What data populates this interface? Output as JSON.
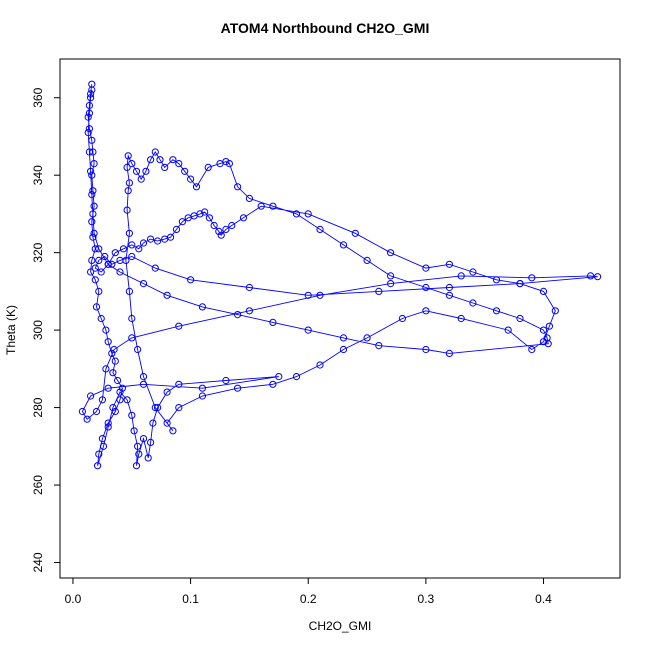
{
  "chart_data": {
    "type": "line",
    "title": "ATOM4 Northbound CH2O_GMI",
    "xlabel": "CH2O_GMI",
    "ylabel": "Theta (K)",
    "xlim": [
      -0.011,
      0.465
    ],
    "ylim": [
      236,
      370
    ],
    "xticks": [
      "0.0",
      "0.1",
      "0.2",
      "0.3",
      "0.4"
    ],
    "yticks": [
      "240",
      "260",
      "280",
      "300",
      "320",
      "340",
      "360"
    ],
    "grid": false,
    "marker": "open-circle",
    "series_color": "#0000ff",
    "series": [
      {
        "points": [
          [
            0.016,
            363.5
          ],
          [
            0.015,
            361.0
          ],
          [
            0.014,
            358.0
          ],
          [
            0.013,
            355.0
          ],
          [
            0.014,
            352.0
          ],
          [
            0.016,
            349.0
          ],
          [
            0.017,
            346.0
          ],
          [
            0.018,
            343.0
          ],
          [
            0.016,
            340.0
          ],
          [
            0.017,
            336.0
          ],
          [
            0.018,
            332.0
          ],
          [
            0.016,
            328.0
          ],
          [
            0.017,
            324.0
          ],
          [
            0.019,
            321.0
          ],
          [
            0.016,
            318.0
          ],
          [
            0.015,
            315.0
          ],
          [
            0.019,
            313.0
          ],
          [
            0.022,
            310.0
          ],
          [
            0.02,
            306.0
          ],
          [
            0.024,
            303.0
          ],
          [
            0.028,
            300.0
          ],
          [
            0.03,
            297.0
          ],
          [
            0.033,
            294.0
          ],
          [
            0.036,
            292.0
          ],
          [
            0.034,
            289.0
          ],
          [
            0.038,
            287.0
          ],
          [
            0.042,
            285.0
          ],
          [
            0.04,
            282.0
          ],
          [
            0.036,
            279.0
          ],
          [
            0.03,
            276.0
          ],
          [
            0.025,
            272.0
          ],
          [
            0.022,
            268.0
          ],
          [
            0.021,
            265.0
          ],
          [
            0.026,
            270.0
          ],
          [
            0.03,
            275.0
          ],
          [
            0.034,
            280.0
          ],
          [
            0.04,
            284.0
          ],
          [
            0.046,
            282.0
          ],
          [
            0.05,
            278.0
          ],
          [
            0.052,
            274.0
          ],
          [
            0.055,
            270.0
          ],
          [
            0.054,
            265.0
          ],
          [
            0.056,
            268.0
          ],
          [
            0.06,
            272.0
          ],
          [
            0.064,
            267.0
          ],
          [
            0.066,
            271.0
          ],
          [
            0.068,
            276.0
          ],
          [
            0.072,
            280.0
          ],
          [
            0.08,
            284.0
          ],
          [
            0.09,
            286.0
          ],
          [
            0.13,
            287.0
          ],
          [
            0.175,
            288.0
          ],
          [
            0.11,
            285.0
          ],
          [
            0.06,
            286.0
          ],
          [
            0.03,
            285.0
          ],
          [
            0.015,
            283.0
          ],
          [
            0.008,
            279.0
          ],
          [
            0.012,
            277.0
          ],
          [
            0.02,
            279.0
          ],
          [
            0.025,
            282.0
          ],
          [
            0.028,
            290.0
          ],
          [
            0.035,
            295.0
          ],
          [
            0.05,
            298.0
          ],
          [
            0.09,
            301.0
          ],
          [
            0.15,
            305.0
          ],
          [
            0.21,
            309.0
          ],
          [
            0.27,
            312.0
          ],
          [
            0.33,
            314.0
          ],
          [
            0.39,
            313.5
          ],
          [
            0.44,
            314.0
          ],
          [
            0.446,
            313.8
          ],
          [
            0.38,
            312.0
          ],
          [
            0.32,
            311.0
          ],
          [
            0.26,
            310.0
          ],
          [
            0.2,
            309.0
          ],
          [
            0.15,
            311.0
          ],
          [
            0.1,
            313.0
          ],
          [
            0.07,
            316.0
          ],
          [
            0.05,
            319.0
          ],
          [
            0.04,
            318.0
          ],
          [
            0.033,
            317.0
          ],
          [
            0.027,
            319.0
          ],
          [
            0.022,
            318.0
          ],
          [
            0.019,
            316.0
          ],
          [
            0.024,
            315.0
          ],
          [
            0.03,
            317.0
          ],
          [
            0.036,
            320.0
          ],
          [
            0.043,
            321.0
          ],
          [
            0.05,
            322.0
          ],
          [
            0.056,
            321.0
          ],
          [
            0.06,
            322.5
          ],
          [
            0.066,
            323.5
          ],
          [
            0.072,
            323.0
          ],
          [
            0.078,
            323.5
          ],
          [
            0.083,
            324.0
          ],
          [
            0.088,
            326.0
          ],
          [
            0.093,
            328.0
          ],
          [
            0.098,
            329.0
          ],
          [
            0.103,
            329.5
          ],
          [
            0.108,
            330.0
          ],
          [
            0.112,
            330.5
          ],
          [
            0.116,
            329.0
          ],
          [
            0.12,
            327.0
          ],
          [
            0.124,
            325.5
          ],
          [
            0.126,
            324.5
          ],
          [
            0.13,
            326.0
          ],
          [
            0.135,
            327.0
          ],
          [
            0.145,
            329.0
          ],
          [
            0.16,
            332.0
          ],
          [
            0.2,
            330.0
          ],
          [
            0.24,
            325.0
          ],
          [
            0.27,
            320.0
          ],
          [
            0.3,
            316.0
          ],
          [
            0.32,
            317.0
          ],
          [
            0.34,
            315.0
          ],
          [
            0.36,
            313.0
          ],
          [
            0.38,
            312.0
          ],
          [
            0.4,
            310.0
          ],
          [
            0.41,
            305.0
          ],
          [
            0.405,
            301.0
          ],
          [
            0.4,
            297.0
          ],
          [
            0.39,
            295.0
          ],
          [
            0.37,
            300.0
          ],
          [
            0.33,
            303.0
          ],
          [
            0.3,
            305.0
          ],
          [
            0.28,
            303.0
          ],
          [
            0.25,
            298.0
          ],
          [
            0.23,
            295.0
          ],
          [
            0.21,
            291.0
          ],
          [
            0.19,
            288.0
          ],
          [
            0.17,
            286.0
          ],
          [
            0.14,
            285.0
          ],
          [
            0.11,
            283.0
          ],
          [
            0.09,
            280.0
          ],
          [
            0.08,
            276.0
          ],
          [
            0.085,
            274.0
          ],
          [
            0.07,
            280.0
          ],
          [
            0.06,
            288.0
          ],
          [
            0.055,
            295.0
          ],
          [
            0.05,
            303.0
          ],
          [
            0.048,
            310.0
          ],
          [
            0.045,
            318.0
          ],
          [
            0.048,
            325.0
          ],
          [
            0.046,
            331.0
          ],
          [
            0.047,
            336.0
          ],
          [
            0.048,
            338.0
          ],
          [
            0.046,
            342.0
          ],
          [
            0.047,
            345.0
          ],
          [
            0.05,
            343.0
          ],
          [
            0.054,
            341.0
          ],
          [
            0.058,
            339.0
          ],
          [
            0.062,
            341.0
          ],
          [
            0.066,
            344.0
          ],
          [
            0.07,
            346.0
          ],
          [
            0.074,
            344.0
          ],
          [
            0.078,
            342.0
          ],
          [
            0.085,
            344.0
          ],
          [
            0.09,
            343.0
          ],
          [
            0.095,
            341.0
          ],
          [
            0.1,
            339.0
          ],
          [
            0.105,
            337.0
          ],
          [
            0.115,
            342.0
          ],
          [
            0.125,
            343.0
          ],
          [
            0.13,
            343.5
          ],
          [
            0.133,
            343.0
          ],
          [
            0.14,
            337.0
          ],
          [
            0.15,
            334.0
          ],
          [
            0.17,
            332.0
          ],
          [
            0.19,
            330.0
          ],
          [
            0.21,
            326.0
          ],
          [
            0.23,
            322.0
          ],
          [
            0.25,
            318.0
          ],
          [
            0.27,
            314.0
          ],
          [
            0.3,
            311.0
          ],
          [
            0.32,
            309.0
          ],
          [
            0.34,
            307.0
          ],
          [
            0.36,
            305.0
          ],
          [
            0.38,
            303.0
          ],
          [
            0.4,
            300.0
          ],
          [
            0.403,
            298.0
          ],
          [
            0.404,
            296.5
          ],
          [
            0.32,
            294.0
          ],
          [
            0.3,
            295.0
          ],
          [
            0.26,
            296.0
          ],
          [
            0.23,
            298.0
          ],
          [
            0.2,
            300.0
          ],
          [
            0.17,
            302.0
          ],
          [
            0.14,
            304.0
          ],
          [
            0.11,
            306.0
          ],
          [
            0.08,
            309.0
          ],
          [
            0.06,
            312.0
          ],
          [
            0.04,
            315.0
          ],
          [
            0.03,
            317.0
          ],
          [
            0.022,
            321.0
          ],
          [
            0.018,
            325.0
          ],
          [
            0.017,
            330.0
          ],
          [
            0.016,
            335.0
          ],
          [
            0.015,
            341.0
          ],
          [
            0.014,
            346.0
          ],
          [
            0.013,
            351.0
          ],
          [
            0.014,
            356.0
          ],
          [
            0.015,
            360.0
          ],
          [
            0.016,
            362.0
          ]
        ]
      }
    ]
  }
}
